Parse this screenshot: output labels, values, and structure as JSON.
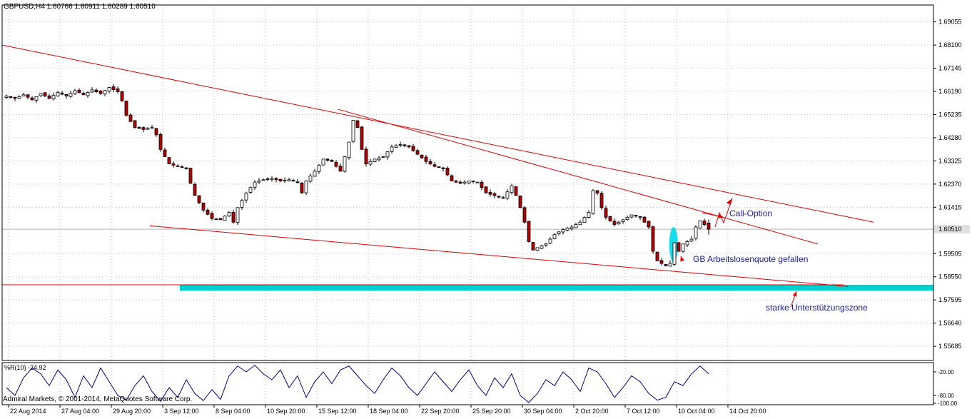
{
  "header": {
    "symbol_line": "GBPUSD,H4  1.60766 1.60911 1.60289 1.60510"
  },
  "footer": {
    "copyright": "Admiral Markets, © 2001-2014, MetaQuotes Software Corp."
  },
  "colors": {
    "background": "#ffffff",
    "grid": "#c8c8c8",
    "trendline": "#dd0000",
    "support_zone": "#00d0d0",
    "highlight_ellipse": "#00d8e8",
    "annotation_text": "#1a1aa0",
    "indicator_line": "#00007f",
    "bull_candle": "#ffffff",
    "bear_candle": "#b40000",
    "wick": "#000000",
    "current_price_box": "#e0e0e0"
  },
  "chart_data": {
    "type": "candlestick",
    "symbol": "GBPUSD",
    "timeframe": "H4",
    "last_bar": {
      "open": 1.60766,
      "high": 1.60911,
      "low": 1.60289,
      "close": 1.6051
    },
    "current_price_label": "1.60510",
    "ylim": [
      1.551,
      1.6975
    ],
    "y_ticks": [
      "1.69055",
      "1.68100",
      "1.67145",
      "1.66190",
      "1.65235",
      "1.64280",
      "1.63325",
      "1.62370",
      "1.61415",
      "1.59505",
      "1.58550",
      "1.57595",
      "1.56640",
      "1.55685"
    ],
    "x_ticks": [
      "22 Aug 2014",
      "27 Aug 04:00",
      "29 Aug 20:00",
      "3 Sep 12:00",
      "8 Sep 04:00",
      "10 Sep 20:00",
      "15 Sep 12:00",
      "18 Sep 04:00",
      "22 Sep 20:00",
      "25 Sep 20:00",
      "30 Sep 04:00",
      "2 Oct 20:00",
      "7 Oct 12:00",
      "10 Oct 04:00",
      "14 Oct 20:00"
    ],
    "grid": true,
    "price_path": [
      [
        0,
        1.66
      ],
      [
        2,
        1.659
      ],
      [
        4,
        1.6605
      ],
      [
        6,
        1.6585
      ],
      [
        8,
        1.661
      ],
      [
        10,
        1.659
      ],
      [
        12,
        1.6615
      ],
      [
        14,
        1.66
      ],
      [
        16,
        1.6622
      ],
      [
        18,
        1.6605
      ],
      [
        20,
        1.6625
      ],
      [
        22,
        1.661
      ],
      [
        24,
        1.6635
      ],
      [
        26,
        1.6618
      ],
      [
        27,
        1.658
      ],
      [
        28,
        1.652
      ],
      [
        30,
        1.647
      ],
      [
        32,
        1.6462
      ],
      [
        34,
        1.647
      ],
      [
        35,
        1.644
      ],
      [
        36,
        1.638
      ],
      [
        38,
        1.632
      ],
      [
        40,
        1.631
      ],
      [
        42,
        1.63
      ],
      [
        43,
        1.624
      ],
      [
        44,
        1.619
      ],
      [
        46,
        1.613
      ],
      [
        48,
        1.6095
      ],
      [
        50,
        1.609
      ],
      [
        51,
        1.6105
      ],
      [
        52,
        1.612
      ],
      [
        53,
        1.608
      ],
      [
        54,
        1.614
      ],
      [
        56,
        1.62
      ],
      [
        58,
        1.6245
      ],
      [
        60,
        1.6255
      ],
      [
        62,
        1.626
      ],
      [
        64,
        1.625
      ],
      [
        66,
        1.6255
      ],
      [
        68,
        1.6245
      ],
      [
        69,
        1.62
      ],
      [
        70,
        1.625
      ],
      [
        72,
        1.629
      ],
      [
        74,
        1.634
      ],
      [
        76,
        1.633
      ],
      [
        78,
        1.629
      ],
      [
        80,
        1.641
      ],
      [
        81,
        1.65
      ],
      [
        82,
        1.647
      ],
      [
        83,
        1.638
      ],
      [
        84,
        1.632
      ],
      [
        86,
        1.634
      ],
      [
        88,
        1.635
      ],
      [
        90,
        1.639
      ],
      [
        92,
        1.64
      ],
      [
        94,
        1.639
      ],
      [
        96,
        1.636
      ],
      [
        98,
        1.633
      ],
      [
        100,
        1.631
      ],
      [
        102,
        1.63
      ],
      [
        104,
        1.625
      ],
      [
        106,
        1.624
      ],
      [
        108,
        1.625
      ],
      [
        110,
        1.6245
      ],
      [
        112,
        1.62
      ],
      [
        114,
        1.619
      ],
      [
        116,
        1.618
      ],
      [
        118,
        1.623
      ],
      [
        119,
        1.619
      ],
      [
        120,
        1.614
      ],
      [
        121,
        1.608
      ],
      [
        122,
        1.6
      ],
      [
        123,
        1.5965
      ],
      [
        124,
        1.5975
      ],
      [
        126,
        1.599
      ],
      [
        128,
        1.603
      ],
      [
        130,
        1.605
      ],
      [
        132,
        1.606
      ],
      [
        134,
        1.608
      ],
      [
        136,
        1.612
      ],
      [
        137,
        1.621
      ],
      [
        138,
        1.62
      ],
      [
        139,
        1.614
      ],
      [
        140,
        1.61
      ],
      [
        142,
        1.607
      ],
      [
        144,
        1.609
      ],
      [
        146,
        1.611
      ],
      [
        148,
        1.61
      ],
      [
        150,
        1.606
      ],
      [
        151,
        1.596
      ],
      [
        152,
        1.592
      ],
      [
        154,
        1.59
      ],
      [
        155,
        1.591
      ],
      [
        156,
        1.5995
      ],
      [
        157,
        1.596
      ],
      [
        158,
        1.599
      ],
      [
        160,
        1.601
      ],
      [
        161,
        1.606
      ],
      [
        162,
        1.6085
      ],
      [
        163,
        1.607
      ],
      [
        164,
        1.6051
      ]
    ],
    "trendlines": [
      {
        "name": "upper-resistance",
        "from": [
          -2,
          1.681
        ],
        "to": [
          203,
          1.608
        ]
      },
      {
        "name": "inner-resistance",
        "from": [
          78,
          1.6545
        ],
        "to": [
          190,
          1.599
        ]
      },
      {
        "name": "lower-channel",
        "from": [
          34,
          1.6065
        ],
        "to": [
          197,
          1.5815
        ]
      },
      {
        "name": "horizontal-support",
        "from": [
          -2,
          1.5822
        ],
        "to": [
          196,
          1.5822
        ]
      }
    ],
    "support_zone": {
      "y_top": 1.5822,
      "y_bottom": 1.5797,
      "x_start": 41,
      "x_end": 236
    },
    "highlight_ellipse": {
      "x": 156.3,
      "y_top": 1.606,
      "y_bottom": 1.5915
    },
    "annotations": [
      {
        "text": "Call-Option",
        "target": [
          168,
          1.61
        ]
      },
      {
        "text": "GB Arbeitslosenquote gefallen",
        "target": [
          158,
          1.594
        ]
      },
      {
        "text": "starke Unterstützungszone",
        "target": [
          185,
          1.5795
        ]
      }
    ],
    "indicator": {
      "name": "%R(10)",
      "value_label": "-24.92",
      "ylim": [
        -100,
        0
      ],
      "ticks": [
        "-20.00",
        "-80.00",
        "-100.00"
      ],
      "series": [
        [
          0,
          -60
        ],
        [
          2,
          -80
        ],
        [
          4,
          -35
        ],
        [
          6,
          -10
        ],
        [
          8,
          -25
        ],
        [
          10,
          -55
        ],
        [
          12,
          -15
        ],
        [
          14,
          -40
        ],
        [
          16,
          -85
        ],
        [
          18,
          -30
        ],
        [
          20,
          -60
        ],
        [
          22,
          -10
        ],
        [
          24,
          -45
        ],
        [
          26,
          -80
        ],
        [
          28,
          -92
        ],
        [
          30,
          -55
        ],
        [
          32,
          -30
        ],
        [
          34,
          -70
        ],
        [
          36,
          -95
        ],
        [
          38,
          -60
        ],
        [
          40,
          -85
        ],
        [
          42,
          -40
        ],
        [
          44,
          -75
        ],
        [
          46,
          -93
        ],
        [
          48,
          -65
        ],
        [
          50,
          -90
        ],
        [
          52,
          -30
        ],
        [
          54,
          -5
        ],
        [
          56,
          -20
        ],
        [
          58,
          -3
        ],
        [
          60,
          -25
        ],
        [
          62,
          -40
        ],
        [
          64,
          -15
        ],
        [
          66,
          -60
        ],
        [
          68,
          -30
        ],
        [
          70,
          -85
        ],
        [
          72,
          -45
        ],
        [
          74,
          -20
        ],
        [
          76,
          -50
        ],
        [
          78,
          -15
        ],
        [
          80,
          -5
        ],
        [
          82,
          -30
        ],
        [
          84,
          -55
        ],
        [
          86,
          -75
        ],
        [
          88,
          -40
        ],
        [
          90,
          -10
        ],
        [
          92,
          -30
        ],
        [
          94,
          -60
        ],
        [
          96,
          -80
        ],
        [
          98,
          -50
        ],
        [
          100,
          -20
        ],
        [
          102,
          -45
        ],
        [
          104,
          -70
        ],
        [
          106,
          -40
        ],
        [
          108,
          -15
        ],
        [
          110,
          -55
        ],
        [
          112,
          -80
        ],
        [
          114,
          -35
        ],
        [
          116,
          -60
        ],
        [
          118,
          -25
        ],
        [
          120,
          -80
        ],
        [
          122,
          -98
        ],
        [
          124,
          -75
        ],
        [
          126,
          -40
        ],
        [
          128,
          -55
        ],
        [
          130,
          -20
        ],
        [
          132,
          -40
        ],
        [
          134,
          -70
        ],
        [
          136,
          -10
        ],
        [
          138,
          -20
        ],
        [
          140,
          -50
        ],
        [
          142,
          -85
        ],
        [
          144,
          -60
        ],
        [
          146,
          -30
        ],
        [
          148,
          -45
        ],
        [
          150,
          -75
        ],
        [
          152,
          -92
        ],
        [
          154,
          -85
        ],
        [
          156,
          -45
        ],
        [
          158,
          -55
        ],
        [
          160,
          -25
        ],
        [
          162,
          -5
        ],
        [
          164,
          -25
        ]
      ]
    }
  }
}
